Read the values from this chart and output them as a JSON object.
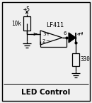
{
  "bg_color": "#f0f0f0",
  "border_color": "#000000",
  "line_color": "#000000",
  "title": "LED Control",
  "title_fontsize": 7.5,
  "label_plus5": "+5",
  "label_10k": "10k",
  "label_lf411": "LF411",
  "label_330": "330",
  "label_pin3": "3",
  "label_pin2": "2",
  "label_pin6": "6",
  "figw": 1.3,
  "figh": 1.45,
  "dpi": 100
}
